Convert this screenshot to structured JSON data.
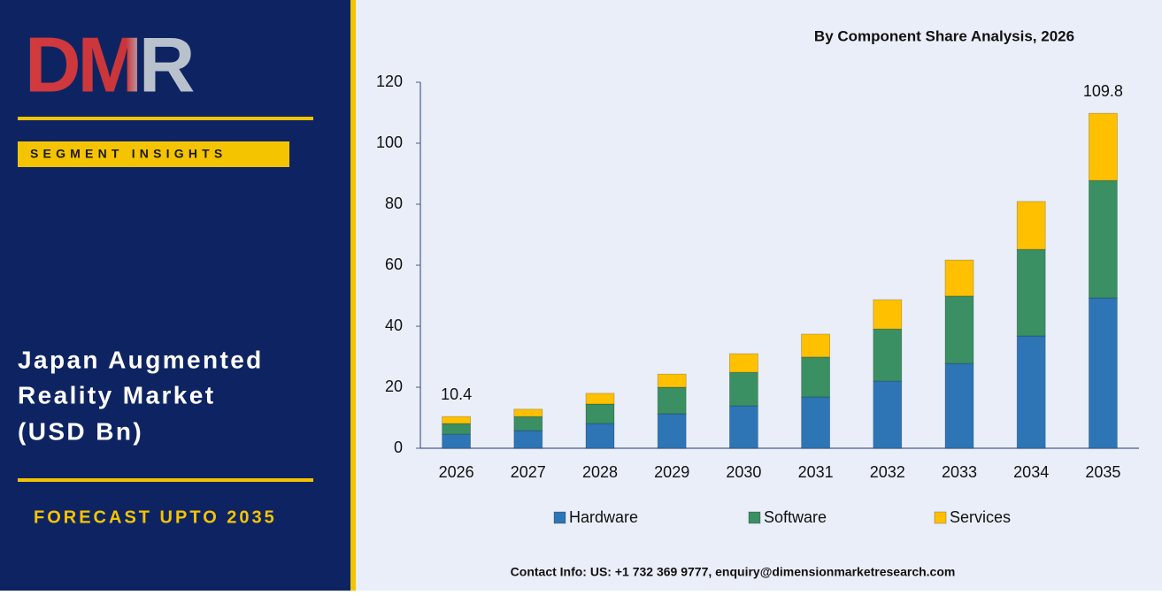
{
  "logo": "DMR",
  "badge": "SEGMENT INSIGHTS",
  "report_title": [
    "Japan Augmented",
    "Reality Market",
    "(USD Bn)"
  ],
  "forecast": "FORECAST UPTO 2035",
  "footer": "Contact Info: US: +1 732 369 9777, enquiry@dimensionmarketresearch.com",
  "chart_data": {
    "type": "stacked_bar",
    "title": "By Component Share Analysis, 2026",
    "categories": [
      "2026",
      "2027",
      "2028",
      "2029",
      "2030",
      "2031",
      "2032",
      "2033",
      "2034",
      "2035"
    ],
    "series": [
      {
        "name": "Hardware",
        "color": "#2e75b6",
        "values": [
          4.6,
          5.8,
          8.1,
          11.3,
          13.9,
          16.8,
          22.0,
          27.8,
          36.8,
          49.3
        ]
      },
      {
        "name": "Software",
        "color": "#3a8f63",
        "values": [
          3.5,
          4.6,
          6.4,
          8.7,
          11.0,
          13.1,
          17.1,
          22.1,
          28.4,
          38.5
        ]
      },
      {
        "name": "Services",
        "color": "#ffc000",
        "values": [
          2.3,
          2.4,
          3.5,
          4.3,
          6.1,
          7.5,
          9.6,
          11.8,
          15.7,
          22.0
        ]
      }
    ],
    "annotations": [
      {
        "category": "2026",
        "value": 10.4
      },
      {
        "category": "2035",
        "value": 109.8
      }
    ],
    "ylim": [
      0,
      120
    ],
    "yticks": [
      0,
      20,
      40,
      60,
      80,
      100,
      120
    ],
    "grid": false,
    "legend": "bottom"
  }
}
